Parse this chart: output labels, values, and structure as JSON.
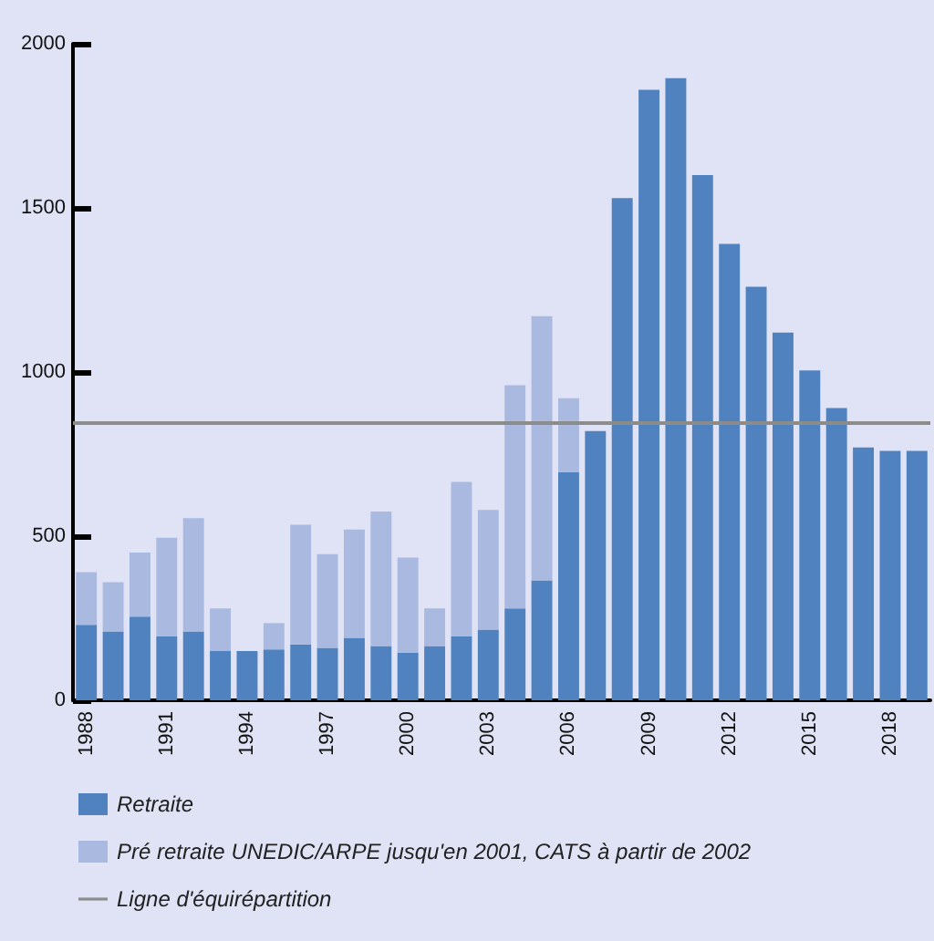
{
  "chart_data": {
    "type": "bar",
    "stacked": true,
    "categories": [
      "1988",
      null,
      null,
      "1991",
      null,
      null,
      "1994",
      null,
      null,
      "1997",
      null,
      null,
      "2000",
      null,
      null,
      "2003",
      null,
      null,
      "2006",
      null,
      null,
      "2009",
      null,
      null,
      "2012",
      null,
      null,
      "2015",
      null,
      null,
      "2018",
      null
    ],
    "series": [
      {
        "name": "Retraite",
        "color": "#5082c0",
        "values": [
          230,
          210,
          255,
          195,
          210,
          150,
          150,
          155,
          170,
          160,
          190,
          165,
          145,
          165,
          195,
          215,
          280,
          365,
          695,
          820,
          1530,
          1860,
          1895,
          1600,
          1390,
          1260,
          1120,
          1005,
          890,
          770,
          760,
          760
        ]
      },
      {
        "name": "Pré retraite UNEDIC/ARPE jusqu'en 2001, CATS à partir de 2002",
        "color": "#a9b9e0",
        "values": [
          160,
          150,
          195,
          300,
          345,
          130,
          0,
          80,
          365,
          285,
          330,
          410,
          290,
          115,
          470,
          365,
          680,
          805,
          225,
          null,
          null,
          null,
          null,
          null,
          null,
          null,
          null,
          null,
          null,
          null,
          null,
          null
        ]
      }
    ],
    "ref_lines": [
      {
        "axis": "y",
        "value": 845,
        "label": "Ligne d'équirépartition",
        "color": "#8c8c8c"
      }
    ],
    "ylim": [
      0,
      2000
    ],
    "yticks": [
      0,
      500,
      1000,
      1500,
      2000
    ],
    "grid": false,
    "legend": "bottom"
  }
}
